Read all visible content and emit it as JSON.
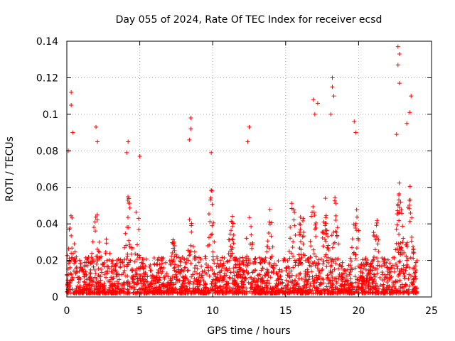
{
  "chart_data": {
    "type": "scatter",
    "title": "Day 055 of 2024, Rate Of TEC Index for receiver ecsd",
    "xlabel": "GPS time / hours",
    "ylabel": "ROTI / TECUs",
    "xlim": [
      0,
      25
    ],
    "ylim": [
      0,
      0.14
    ],
    "xticks": [
      0,
      5,
      10,
      15,
      20,
      25
    ],
    "yticks": [
      0,
      0.02,
      0.04,
      0.06,
      0.08,
      0.1,
      0.12,
      0.14
    ],
    "xtick_labels": [
      "0",
      "5",
      "10",
      "15",
      "20",
      "25"
    ],
    "ytick_labels": [
      "0",
      "0.02",
      "0.04",
      "0.06",
      "0.08",
      "0.1",
      "0.12",
      "0.14"
    ],
    "grid": true,
    "marker": "+",
    "color": "#ff0000",
    "series": [
      {
        "name": "ROTI",
        "x_range": [
          0,
          24
        ],
        "notable_points": [
          {
            "x": 0.1,
            "y": 0.08
          },
          {
            "x": 0.3,
            "y": 0.112
          },
          {
            "x": 0.3,
            "y": 0.105
          },
          {
            "x": 0.4,
            "y": 0.09
          },
          {
            "x": 2.0,
            "y": 0.093
          },
          {
            "x": 2.1,
            "y": 0.085
          },
          {
            "x": 4.2,
            "y": 0.085
          },
          {
            "x": 4.1,
            "y": 0.079
          },
          {
            "x": 5.0,
            "y": 0.077
          },
          {
            "x": 8.5,
            "y": 0.098
          },
          {
            "x": 8.5,
            "y": 0.092
          },
          {
            "x": 8.4,
            "y": 0.086
          },
          {
            "x": 9.9,
            "y": 0.079
          },
          {
            "x": 12.5,
            "y": 0.093
          },
          {
            "x": 12.4,
            "y": 0.085
          },
          {
            "x": 16.9,
            "y": 0.108
          },
          {
            "x": 17.2,
            "y": 0.106
          },
          {
            "x": 17.0,
            "y": 0.1
          },
          {
            "x": 18.2,
            "y": 0.12
          },
          {
            "x": 18.2,
            "y": 0.115
          },
          {
            "x": 18.3,
            "y": 0.11
          },
          {
            "x": 18.1,
            "y": 0.1
          },
          {
            "x": 19.7,
            "y": 0.096
          },
          {
            "x": 19.8,
            "y": 0.09
          },
          {
            "x": 22.7,
            "y": 0.137
          },
          {
            "x": 22.8,
            "y": 0.133
          },
          {
            "x": 22.7,
            "y": 0.127
          },
          {
            "x": 22.8,
            "y": 0.117
          },
          {
            "x": 23.6,
            "y": 0.11
          },
          {
            "x": 23.5,
            "y": 0.101
          },
          {
            "x": 23.3,
            "y": 0.095
          },
          {
            "x": 22.6,
            "y": 0.089
          }
        ],
        "typical_band": {
          "y_min": 0.002,
          "y_max": 0.06
        }
      }
    ]
  }
}
